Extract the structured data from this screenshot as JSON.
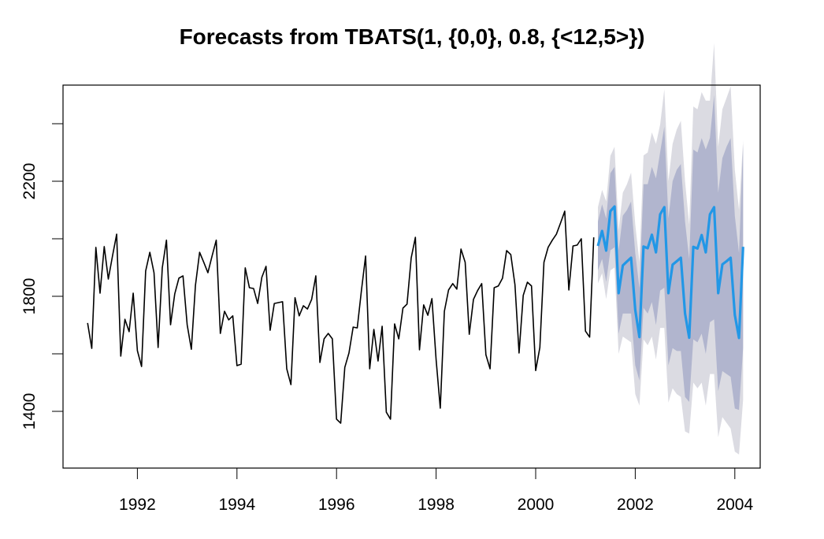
{
  "chart_data": {
    "type": "line",
    "title": "Forecasts from TBATS(1, {0,0}, 0.8, {<12,5>})",
    "xlabel": "",
    "ylabel": "",
    "xlim": [
      1990.5,
      2004.5
    ],
    "ylim": [
      1220,
      2560
    ],
    "grid": false,
    "legend": "none",
    "x_ticks": [
      1992,
      1994,
      1996,
      1998,
      2000,
      2002,
      2004
    ],
    "x_tick_labels": [
      "1992",
      "1994",
      "1996",
      "1998",
      "2000",
      "2002",
      "2004"
    ],
    "y_ticks": [
      1400,
      1600,
      1800,
      2000,
      2200,
      2400
    ],
    "y_tick_labels": [
      "1400",
      "",
      "1800",
      "",
      "2200",
      ""
    ],
    "frequency": 12,
    "history": {
      "name": "observed",
      "color": "#000000",
      "start": 1991.0,
      "values": [
        1707,
        1619,
        1970,
        1811,
        1973,
        1860,
        1940,
        2016,
        1592,
        1720,
        1677,
        1811,
        1611,
        1556,
        1888,
        1953,
        1882,
        1622,
        1899,
        1995,
        1701,
        1808,
        1863,
        1871,
        1701,
        1616,
        1838,
        1953,
        1918,
        1882,
        1940,
        1995,
        1671,
        1748,
        1718,
        1732,
        1559,
        1564,
        1899,
        1830,
        1827,
        1775,
        1866,
        1904,
        1682,
        1775,
        1778,
        1781,
        1548,
        1493,
        1795,
        1732,
        1767,
        1756,
        1789,
        1871,
        1570,
        1652,
        1671,
        1652,
        1373,
        1359,
        1553,
        1603,
        1693,
        1690,
        1820,
        1940,
        1548,
        1685,
        1575,
        1696,
        1397,
        1373,
        1704,
        1652,
        1759,
        1773,
        1934,
        2005,
        1614,
        1770,
        1734,
        1792,
        1580,
        1411,
        1748,
        1822,
        1844,
        1825,
        1964,
        1918,
        1668,
        1789,
        1820,
        1844,
        1597,
        1548,
        1830,
        1836,
        1863,
        1959,
        1945,
        1840,
        1603,
        1803,
        1849,
        1836,
        1542,
        1622,
        1918,
        1970,
        1995,
        2016,
        2055,
        2096,
        1822,
        1975,
        1978,
        2000,
        1679,
        1658,
        2005
      ]
    },
    "forecast": {
      "name": "point forecast",
      "color": "#2297e6",
      "start": 2001.25,
      "values": [
        1975,
        2027,
        1959,
        2096,
        2112,
        1811,
        1907,
        1921,
        1934,
        1753,
        1658,
        1973,
        1967,
        2014,
        1953,
        2085,
        2110,
        1811,
        1910,
        1922,
        1934,
        1740,
        1656,
        1972,
        1966,
        2013,
        1953,
        2085,
        2110,
        1811,
        1911,
        1922,
        1934,
        1735,
        1655,
        1972
      ],
      "lo80": [
        1890,
        1930,
        1850,
        1960,
        1970,
        1670,
        1740,
        1740,
        1740,
        1560,
        1507,
        1760,
        1740,
        1780,
        1700,
        1820,
        1830,
        1560,
        1620,
        1610,
        1610,
        1450,
        1433,
        1650,
        1640,
        1670,
        1600,
        1710,
        1720,
        1470,
        1540,
        1530,
        1520,
        1410,
        1405,
        1620
      ],
      "hi80": [
        2060,
        2120,
        2070,
        2228,
        2250,
        1960,
        2080,
        2100,
        2130,
        1950,
        1830,
        2190,
        2190,
        2250,
        2210,
        2301,
        2390,
        2070,
        2200,
        2240,
        2260,
        2060,
        1930,
        2310,
        2300,
        2350,
        2310,
        2351,
        2500,
        2160,
        2280,
        2320,
        2350,
        2080,
        1950,
        2330
      ],
      "lo95": [
        1845,
        1880,
        1790,
        1890,
        1900,
        1600,
        1660,
        1650,
        1640,
        1460,
        1420,
        1650,
        1630,
        1660,
        1580,
        1690,
        1690,
        1430,
        1480,
        1460,
        1450,
        1330,
        1323,
        1500,
        1480,
        1500,
        1420,
        1530,
        1530,
        1310,
        1380,
        1360,
        1340,
        1260,
        1250,
        1440
      ],
      "hi95": [
        2110,
        2170,
        2130,
        2288,
        2320,
        2030,
        2160,
        2190,
        2230,
        2050,
        1920,
        2290,
        2300,
        2370,
        2330,
        2397,
        2520,
        2200,
        2330,
        2380,
        2410,
        2200,
        2050,
        2460,
        2450,
        2510,
        2480,
        2480,
        2680,
        2320,
        2450,
        2490,
        2530,
        2240,
        2100,
        2342
      ],
      "band_colors": {
        "level80": "#b1b5ce",
        "level95": "#dbdbe2"
      }
    }
  }
}
